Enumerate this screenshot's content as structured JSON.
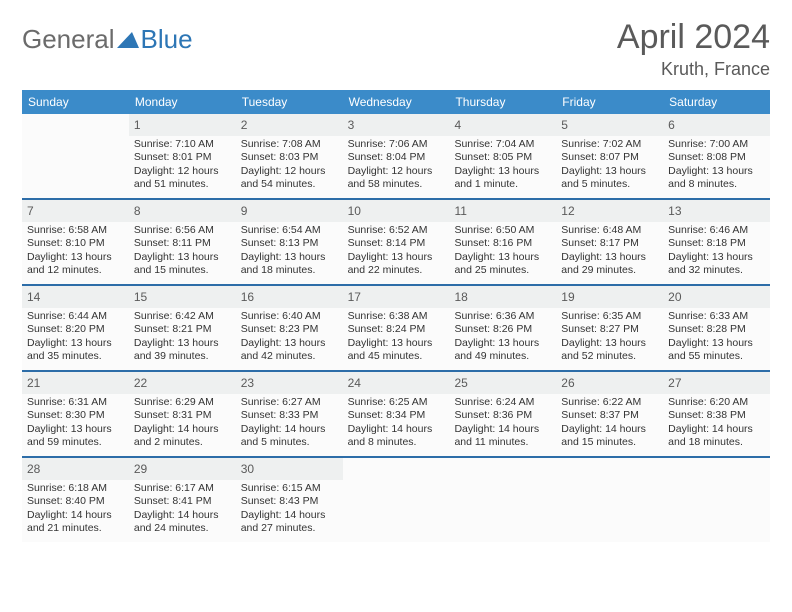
{
  "logo": {
    "general": "General",
    "blue": "Blue"
  },
  "title": "April 2024",
  "location": "Kruth, France",
  "colors": {
    "header_bg": "#3b8bc9",
    "week_border": "#2d6da8",
    "shaded": "#eef0f0",
    "text": "#333333",
    "title_text": "#5a5a5a"
  },
  "dayNames": [
    "Sunday",
    "Monday",
    "Tuesday",
    "Wednesday",
    "Thursday",
    "Friday",
    "Saturday"
  ],
  "weeks": [
    [
      {
        "blank": true
      },
      {
        "n": "1",
        "sr": "Sunrise: 7:10 AM",
        "ss": "Sunset: 8:01 PM",
        "dl1": "Daylight: 12 hours",
        "dl2": "and 51 minutes."
      },
      {
        "n": "2",
        "sr": "Sunrise: 7:08 AM",
        "ss": "Sunset: 8:03 PM",
        "dl1": "Daylight: 12 hours",
        "dl2": "and 54 minutes."
      },
      {
        "n": "3",
        "sr": "Sunrise: 7:06 AM",
        "ss": "Sunset: 8:04 PM",
        "dl1": "Daylight: 12 hours",
        "dl2": "and 58 minutes."
      },
      {
        "n": "4",
        "sr": "Sunrise: 7:04 AM",
        "ss": "Sunset: 8:05 PM",
        "dl1": "Daylight: 13 hours",
        "dl2": "and 1 minute."
      },
      {
        "n": "5",
        "sr": "Sunrise: 7:02 AM",
        "ss": "Sunset: 8:07 PM",
        "dl1": "Daylight: 13 hours",
        "dl2": "and 5 minutes."
      },
      {
        "n": "6",
        "sr": "Sunrise: 7:00 AM",
        "ss": "Sunset: 8:08 PM",
        "dl1": "Daylight: 13 hours",
        "dl2": "and 8 minutes."
      }
    ],
    [
      {
        "n": "7",
        "sr": "Sunrise: 6:58 AM",
        "ss": "Sunset: 8:10 PM",
        "dl1": "Daylight: 13 hours",
        "dl2": "and 12 minutes."
      },
      {
        "n": "8",
        "sr": "Sunrise: 6:56 AM",
        "ss": "Sunset: 8:11 PM",
        "dl1": "Daylight: 13 hours",
        "dl2": "and 15 minutes."
      },
      {
        "n": "9",
        "sr": "Sunrise: 6:54 AM",
        "ss": "Sunset: 8:13 PM",
        "dl1": "Daylight: 13 hours",
        "dl2": "and 18 minutes."
      },
      {
        "n": "10",
        "sr": "Sunrise: 6:52 AM",
        "ss": "Sunset: 8:14 PM",
        "dl1": "Daylight: 13 hours",
        "dl2": "and 22 minutes."
      },
      {
        "n": "11",
        "sr": "Sunrise: 6:50 AM",
        "ss": "Sunset: 8:16 PM",
        "dl1": "Daylight: 13 hours",
        "dl2": "and 25 minutes."
      },
      {
        "n": "12",
        "sr": "Sunrise: 6:48 AM",
        "ss": "Sunset: 8:17 PM",
        "dl1": "Daylight: 13 hours",
        "dl2": "and 29 minutes."
      },
      {
        "n": "13",
        "sr": "Sunrise: 6:46 AM",
        "ss": "Sunset: 8:18 PM",
        "dl1": "Daylight: 13 hours",
        "dl2": "and 32 minutes."
      }
    ],
    [
      {
        "n": "14",
        "sr": "Sunrise: 6:44 AM",
        "ss": "Sunset: 8:20 PM",
        "dl1": "Daylight: 13 hours",
        "dl2": "and 35 minutes."
      },
      {
        "n": "15",
        "sr": "Sunrise: 6:42 AM",
        "ss": "Sunset: 8:21 PM",
        "dl1": "Daylight: 13 hours",
        "dl2": "and 39 minutes."
      },
      {
        "n": "16",
        "sr": "Sunrise: 6:40 AM",
        "ss": "Sunset: 8:23 PM",
        "dl1": "Daylight: 13 hours",
        "dl2": "and 42 minutes."
      },
      {
        "n": "17",
        "sr": "Sunrise: 6:38 AM",
        "ss": "Sunset: 8:24 PM",
        "dl1": "Daylight: 13 hours",
        "dl2": "and 45 minutes."
      },
      {
        "n": "18",
        "sr": "Sunrise: 6:36 AM",
        "ss": "Sunset: 8:26 PM",
        "dl1": "Daylight: 13 hours",
        "dl2": "and 49 minutes."
      },
      {
        "n": "19",
        "sr": "Sunrise: 6:35 AM",
        "ss": "Sunset: 8:27 PM",
        "dl1": "Daylight: 13 hours",
        "dl2": "and 52 minutes."
      },
      {
        "n": "20",
        "sr": "Sunrise: 6:33 AM",
        "ss": "Sunset: 8:28 PM",
        "dl1": "Daylight: 13 hours",
        "dl2": "and 55 minutes."
      }
    ],
    [
      {
        "n": "21",
        "sr": "Sunrise: 6:31 AM",
        "ss": "Sunset: 8:30 PM",
        "dl1": "Daylight: 13 hours",
        "dl2": "and 59 minutes."
      },
      {
        "n": "22",
        "sr": "Sunrise: 6:29 AM",
        "ss": "Sunset: 8:31 PM",
        "dl1": "Daylight: 14 hours",
        "dl2": "and 2 minutes."
      },
      {
        "n": "23",
        "sr": "Sunrise: 6:27 AM",
        "ss": "Sunset: 8:33 PM",
        "dl1": "Daylight: 14 hours",
        "dl2": "and 5 minutes."
      },
      {
        "n": "24",
        "sr": "Sunrise: 6:25 AM",
        "ss": "Sunset: 8:34 PM",
        "dl1": "Daylight: 14 hours",
        "dl2": "and 8 minutes."
      },
      {
        "n": "25",
        "sr": "Sunrise: 6:24 AM",
        "ss": "Sunset: 8:36 PM",
        "dl1": "Daylight: 14 hours",
        "dl2": "and 11 minutes."
      },
      {
        "n": "26",
        "sr": "Sunrise: 6:22 AM",
        "ss": "Sunset: 8:37 PM",
        "dl1": "Daylight: 14 hours",
        "dl2": "and 15 minutes."
      },
      {
        "n": "27",
        "sr": "Sunrise: 6:20 AM",
        "ss": "Sunset: 8:38 PM",
        "dl1": "Daylight: 14 hours",
        "dl2": "and 18 minutes."
      }
    ],
    [
      {
        "n": "28",
        "sr": "Sunrise: 6:18 AM",
        "ss": "Sunset: 8:40 PM",
        "dl1": "Daylight: 14 hours",
        "dl2": "and 21 minutes."
      },
      {
        "n": "29",
        "sr": "Sunrise: 6:17 AM",
        "ss": "Sunset: 8:41 PM",
        "dl1": "Daylight: 14 hours",
        "dl2": "and 24 minutes."
      },
      {
        "n": "30",
        "sr": "Sunrise: 6:15 AM",
        "ss": "Sunset: 8:43 PM",
        "dl1": "Daylight: 14 hours",
        "dl2": "and 27 minutes."
      },
      {
        "blank": true,
        "shaded": true
      },
      {
        "blank": true,
        "shaded": true
      },
      {
        "blank": true,
        "shaded": true
      },
      {
        "blank": true,
        "shaded": true
      }
    ]
  ]
}
